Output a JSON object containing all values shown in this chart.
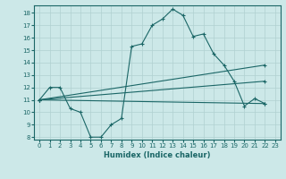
{
  "xlabel": "Humidex (Indice chaleur)",
  "ylabel": "",
  "background_color": "#cce8e8",
  "grid_color": "#b0d0d0",
  "line_color": "#1a6666",
  "xlim": [
    -0.5,
    23.5
  ],
  "ylim": [
    7.8,
    18.6
  ],
  "xticks": [
    0,
    1,
    2,
    3,
    4,
    5,
    6,
    7,
    8,
    9,
    10,
    11,
    12,
    13,
    14,
    15,
    16,
    17,
    18,
    19,
    20,
    21,
    22,
    23
  ],
  "yticks": [
    8,
    9,
    10,
    11,
    12,
    13,
    14,
    15,
    16,
    17,
    18
  ],
  "series": [
    {
      "x": [
        0,
        1,
        2,
        3,
        4,
        5,
        6,
        7,
        8,
        9,
        10,
        11,
        12,
        13,
        14,
        15,
        16,
        17,
        18,
        19,
        20,
        21,
        22
      ],
      "y": [
        11,
        12,
        12,
        10.3,
        10,
        8,
        8,
        9,
        9.5,
        15.3,
        15.5,
        17,
        17.5,
        18.3,
        17.8,
        16.1,
        16.3,
        14.7,
        13.8,
        12.5,
        10.5,
        11.1,
        10.7
      ]
    },
    {
      "x": [
        0,
        22
      ],
      "y": [
        11,
        13.8
      ]
    },
    {
      "x": [
        0,
        22
      ],
      "y": [
        11,
        12.5
      ]
    },
    {
      "x": [
        0,
        22
      ],
      "y": [
        11,
        10.7
      ]
    }
  ]
}
